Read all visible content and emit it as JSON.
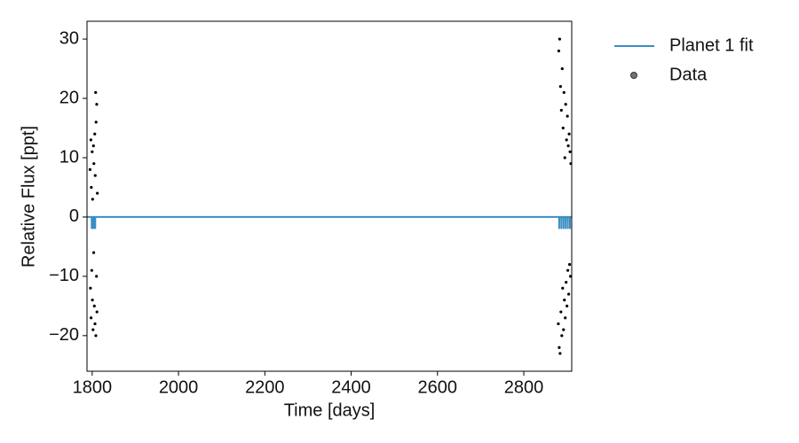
{
  "chart_data": {
    "type": "scatter",
    "x_label": "Time [days]",
    "y_label": "Relative Flux [ppt]",
    "xlim": [
      1788,
      2911
    ],
    "ylim": [
      -26,
      33
    ],
    "xticks": [
      1800,
      2000,
      2200,
      2400,
      2600,
      2800
    ],
    "yticks": [
      {
        "value": -20,
        "label": "−20"
      },
      {
        "value": -10,
        "label": "−10"
      },
      0,
      10,
      20,
      30
    ],
    "legend": "outside right",
    "series": [
      {
        "name": "Planet 1 fit",
        "type": "line",
        "color": "#3a8dc4",
        "x": [
          1788,
          1798.8,
          1799,
          1799.2,
          1802.8,
          1803,
          1803.2,
          1806.8,
          1807,
          1807.2,
          2881.8,
          2882,
          2882.2,
          2886.8,
          2887,
          2887.2,
          2891.8,
          2892,
          2892.2,
          2896.8,
          2897,
          2897.2,
          2901.8,
          2902,
          2902.2,
          2906.8,
          2907,
          2907.2,
          2911
        ],
        "values": [
          0,
          0,
          -2,
          0,
          0,
          -2,
          0,
          0,
          -2,
          0,
          0,
          -2,
          0,
          0,
          -2,
          0,
          0,
          -2,
          0,
          0,
          -2,
          0,
          0,
          -2,
          0,
          0,
          -2,
          0,
          0
        ]
      },
      {
        "name": "Data",
        "type": "scatter",
        "color": "#000000",
        "x": [
          1795,
          1796,
          1797,
          1797.5,
          1798,
          1799,
          1800,
          1800.5,
          1801,
          1802,
          1803,
          1803.5,
          1804,
          1805,
          1806,
          1806.5,
          1807,
          1808,
          1808.5,
          1809,
          1810,
          1810.5,
          1811,
          1812,
          2880,
          2881,
          2882,
          2883,
          2884,
          2885,
          2886,
          2887,
          2888,
          2889,
          2890,
          2891,
          2892,
          2893,
          2894,
          2895,
          2896,
          2897,
          2898,
          2899,
          2900,
          2901,
          2902,
          2903,
          2904,
          2905,
          2906,
          2907,
          2908,
          2909
        ],
        "values": [
          8,
          -12,
          13,
          -17,
          5,
          -9,
          11,
          -14,
          3,
          -19,
          12,
          -6,
          9,
          -15,
          14,
          -18,
          7,
          21,
          -20,
          16,
          -10,
          19,
          -16,
          4,
          -18,
          28,
          -22,
          30,
          -23,
          22,
          -16,
          18,
          -20,
          25,
          -12,
          15,
          -19,
          21,
          -14,
          10,
          -17,
          19,
          -11,
          13,
          -15,
          17,
          -9,
          12,
          -13,
          14,
          -8,
          11,
          -10,
          9
        ]
      }
    ]
  }
}
